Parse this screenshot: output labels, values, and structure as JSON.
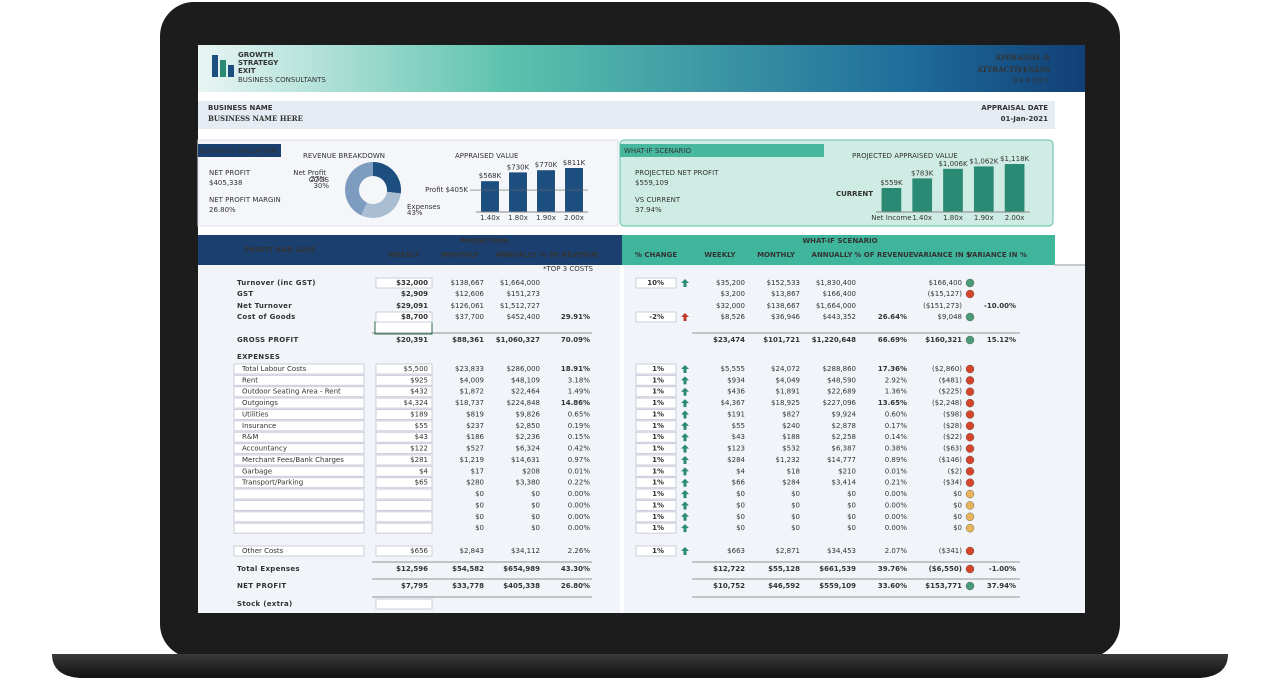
{
  "header": {
    "logo": [
      "GROWTH",
      "STRATEGY",
      "EXIT"
    ],
    "logo_sub": "BUSINESS CONSULTANTS",
    "report_title": [
      "APPRAISAL &",
      "ATTRACTIVENESS"
    ],
    "report_sub": "REPORT"
  },
  "business": {
    "name_label": "BUSINESS NAME",
    "name": "BUSINESS NAME HERE",
    "date_label": "APPRAISAL DATE",
    "date": "01-Jan-2021"
  },
  "valuation": {
    "title": "BUSINESS VALUATION",
    "net_profit_label": "NET PROFIT",
    "net_profit": "$405,338",
    "margin_label": "NET PROFIT MARGIN",
    "margin": "26.80%",
    "revenue_chart": {
      "type": "pie",
      "title": "REVENUE BREAKDOWN",
      "categories": [
        "Net Profit",
        "COGS",
        "Expenses"
      ],
      "values": [
        27,
        30,
        43
      ],
      "value_labels": [
        "27%",
        "30%",
        "43%"
      ],
      "colors": [
        "#1c4e80",
        "#a9bdd3",
        "#7d9cbf"
      ]
    },
    "appraised_chart": {
      "type": "bar",
      "title": "APPRAISED VALUE",
      "categories": [
        "1.40x",
        "1.80x",
        "1.90x",
        "2.00x"
      ],
      "values": [
        568,
        730,
        770,
        811
      ],
      "value_labels": [
        "$568K",
        "$730K",
        "$770K",
        "$811K"
      ],
      "color": "#1c4e80",
      "reference": {
        "label": "Profit $405K",
        "value": 405
      }
    }
  },
  "what_if": {
    "title": "WHAT-IF SCENARIO",
    "projected_label": "PROJECTED NET PROFIT",
    "projected": "$559,109",
    "vs_label": "VS CURRENT",
    "vs": "37.94%",
    "projected_chart": {
      "type": "bar",
      "title": "PROJECTED APPRAISED VALUE",
      "categories": [
        "Net Income",
        "1.40x",
        "1.80x",
        "1.90x",
        "2.00x"
      ],
      "values": [
        559,
        783,
        1006,
        1062,
        1118
      ],
      "value_labels": [
        "$559K",
        "$783K",
        "$1,006K",
        "$1,062K",
        "$1,118K"
      ],
      "color": "#2b8a74",
      "marker": "CURRENT"
    }
  },
  "table": {
    "title": "PROFIT AND LOSS",
    "projection": "PROJECTION",
    "scenario": "WHAT-IF SCENARIO",
    "top_note": "*TOP 3 COSTS",
    "left_columns": [
      "WEEKLY",
      "MONTHLY",
      "ANNUALLY",
      "% OF REVENUE"
    ],
    "right_columns": [
      "% CHANGE",
      "WEEKLY",
      "MONTHLY",
      "ANNUALLY",
      "% OF REVENUE",
      "VARIANCE IN $",
      "VARIANCE IN %"
    ],
    "rows": [
      {
        "label": "Turnover (inc GST)",
        "left": [
          "$32,000",
          "$138,667",
          "$1,664,000",
          ""
        ],
        "change": "10%",
        "arrow": "#2b8a74",
        "right": [
          "$35,200",
          "$152,533",
          "$1,830,400",
          ""
        ],
        "variance": "$166,400",
        "dot": "#4a9a78"
      },
      {
        "label": "GST",
        "left": [
          "$2,909",
          "$12,606",
          "$151,273",
          ""
        ],
        "right": [
          "$3,200",
          "$13,867",
          "$166,400",
          ""
        ],
        "variance": "($15,127)",
        "dot": "#d6452a"
      },
      {
        "label": "Net Turnover",
        "left": [
          "$29,091",
          "$126,061",
          "$1,512,727",
          ""
        ],
        "right": [
          "$32,000",
          "$138,667",
          "$1,664,000",
          ""
        ],
        "variance": "($151,273)",
        "variance_pct": "-10.00%"
      },
      {
        "label": "Cost of Goods",
        "left": [
          "$8,700",
          "$37,700",
          "$452,400",
          "29.91%"
        ],
        "highlight": true,
        "change": "-2%",
        "arrow": "#c0392b",
        "right": [
          "$8,526",
          "$36,946",
          "$443,352",
          "26.64%"
        ],
        "variance": "$9,048",
        "dot": "#4a9a78"
      },
      {
        "label": "GROSS PROFIT",
        "left": [
          "$20,391",
          "$88,361",
          "$1,060,327",
          "70.09%"
        ],
        "right": [
          "$23,474",
          "$101,721",
          "$1,220,648",
          "66.69%"
        ],
        "variance": "$160,321",
        "dot": "#4a9a78",
        "variance_pct": "15.12%"
      },
      {
        "label": "EXPENSES"
      },
      {
        "label": "Total Labour Costs",
        "left": [
          "$5,500",
          "$23,833",
          "$286,000",
          "18.91%"
        ],
        "highlight": true,
        "change": "1%",
        "arrow": "#2b8a74",
        "right": [
          "$5,555",
          "$24,072",
          "$288,860",
          "17.36%"
        ],
        "variance": "($2,860)",
        "dot": "#d6452a"
      },
      {
        "label": "Rent",
        "left": [
          "$925",
          "$4,009",
          "$48,109",
          "3.18%"
        ],
        "change": "1%",
        "arrow": "#2b8a74",
        "right": [
          "$934",
          "$4,049",
          "$48,590",
          "2.92%"
        ],
        "variance": "($481)",
        "dot": "#d6452a"
      },
      {
        "label": "Outdoor Seating Area - Rent",
        "left": [
          "$432",
          "$1,872",
          "$22,464",
          "1.49%"
        ],
        "change": "1%",
        "arrow": "#2b8a74",
        "right": [
          "$436",
          "$1,891",
          "$22,689",
          "1.36%"
        ],
        "variance": "($225)",
        "dot": "#d6452a"
      },
      {
        "label": "Outgoings",
        "left": [
          "$4,324",
          "$18,737",
          "$224,848",
          "14.86%"
        ],
        "highlight": true,
        "change": "1%",
        "arrow": "#2b8a74",
        "right": [
          "$4,367",
          "$18,925",
          "$227,096",
          "13.65%"
        ],
        "variance": "($2,248)",
        "dot": "#d6452a"
      },
      {
        "label": "Utilities",
        "left": [
          "$189",
          "$819",
          "$9,826",
          "0.65%"
        ],
        "change": "1%",
        "arrow": "#2b8a74",
        "right": [
          "$191",
          "$827",
          "$9,924",
          "0.60%"
        ],
        "variance": "($98)",
        "dot": "#d6452a"
      },
      {
        "label": "Insurance",
        "left": [
          "$55",
          "$237",
          "$2,850",
          "0.19%"
        ],
        "change": "1%",
        "arrow": "#2b8a74",
        "right": [
          "$55",
          "$240",
          "$2,878",
          "0.17%"
        ],
        "variance": "($28)",
        "dot": "#d6452a"
      },
      {
        "label": "R&M",
        "left": [
          "$43",
          "$186",
          "$2,236",
          "0.15%"
        ],
        "change": "1%",
        "arrow": "#2b8a74",
        "right": [
          "$43",
          "$188",
          "$2,258",
          "0.14%"
        ],
        "variance": "($22)",
        "dot": "#d6452a"
      },
      {
        "label": "Accountancy",
        "left": [
          "$122",
          "$527",
          "$6,324",
          "0.42%"
        ],
        "change": "1%",
        "arrow": "#2b8a74",
        "right": [
          "$123",
          "$532",
          "$6,387",
          "0.38%"
        ],
        "variance": "($63)",
        "dot": "#d6452a"
      },
      {
        "label": "Merchant Fees/Bank Charges",
        "left": [
          "$281",
          "$1,219",
          "$14,631",
          "0.97%"
        ],
        "change": "1%",
        "arrow": "#2b8a74",
        "right": [
          "$284",
          "$1,232",
          "$14,777",
          "0.89%"
        ],
        "variance": "($146)",
        "dot": "#d6452a"
      },
      {
        "label": "Garbage",
        "left": [
          "$4",
          "$17",
          "$208",
          "0.01%"
        ],
        "change": "1%",
        "arrow": "#2b8a74",
        "right": [
          "$4",
          "$18",
          "$210",
          "0.01%"
        ],
        "variance": "($2)",
        "dot": "#d6452a"
      },
      {
        "label": "Transport/Parking",
        "left": [
          "$65",
          "$280",
          "$3,380",
          "0.22%"
        ],
        "change": "1%",
        "arrow": "#2b8a74",
        "right": [
          "$66",
          "$284",
          "$3,414",
          "0.21%"
        ],
        "variance": "($34)",
        "dot": "#d6452a"
      },
      {
        "left": [
          "",
          "$0",
          "$0",
          "0.00%"
        ],
        "change": "1%",
        "arrow": "#2b8a74",
        "right": [
          "$0",
          "$0",
          "$0",
          "0.00%"
        ],
        "variance": "$0",
        "dot": "#e8b45a"
      },
      {
        "left": [
          "",
          "$0",
          "$0",
          "0.00%"
        ],
        "change": "1%",
        "arrow": "#2b8a74",
        "right": [
          "$0",
          "$0",
          "$0",
          "0.00%"
        ],
        "variance": "$0",
        "dot": "#e8b45a"
      },
      {
        "left": [
          "",
          "$0",
          "$0",
          "0.00%"
        ],
        "change": "1%",
        "arrow": "#2b8a74",
        "right": [
          "$0",
          "$0",
          "$0",
          "0.00%"
        ],
        "variance": "$0",
        "dot": "#e8b45a"
      },
      {
        "left": [
          "",
          "$0",
          "$0",
          "0.00%"
        ],
        "change": "1%",
        "arrow": "#2b8a74",
        "right": [
          "$0",
          "$0",
          "$0",
          "0.00%"
        ],
        "variance": "$0",
        "dot": "#e8b45a"
      },
      {
        "label": "Other Costs",
        "left": [
          "$656",
          "$2,843",
          "$34,112",
          "2.26%"
        ],
        "change": "1%",
        "arrow": "#2b8a74",
        "right": [
          "$663",
          "$2,871",
          "$34,453",
          "2.07%"
        ],
        "variance": "($341)",
        "dot": "#d6452a"
      },
      {
        "label": "Total Expenses",
        "left": [
          "$12,596",
          "$54,582",
          "$654,989",
          "43.30%"
        ],
        "right": [
          "$12,722",
          "$55,128",
          "$661,539",
          "39.76%"
        ],
        "variance": "($6,550)",
        "dot": "#d6452a",
        "variance_pct": "-1.00%"
      },
      {
        "label": "NET PROFIT",
        "left": [
          "$7,795",
          "$33,778",
          "$405,338",
          "26.80%"
        ],
        "right": [
          "$10,752",
          "$46,592",
          "$559,109",
          "33.60%"
        ],
        "variance": "$153,771",
        "dot": "#4a9a78",
        "variance_pct": "37.94%"
      },
      {
        "label": "Stock (extra)"
      }
    ]
  }
}
